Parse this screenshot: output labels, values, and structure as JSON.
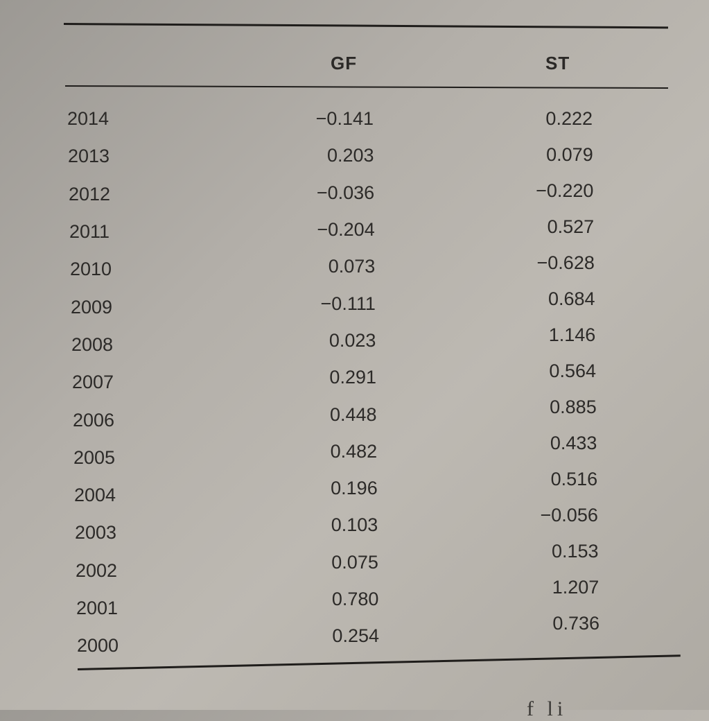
{
  "table": {
    "headers": {
      "row_label": "",
      "gf": "GF",
      "st": "ST"
    },
    "rows": [
      {
        "year": "2014",
        "gf": "−0.141",
        "st": "0.222"
      },
      {
        "year": "2013",
        "gf": "0.203",
        "st": "0.079"
      },
      {
        "year": "2012",
        "gf": "−0.036",
        "st": "−0.220"
      },
      {
        "year": "2011",
        "gf": "−0.204",
        "st": "0.527"
      },
      {
        "year": "2010",
        "gf": "0.073",
        "st": "−0.628"
      },
      {
        "year": "2009",
        "gf": "−0.111",
        "st": "0.684"
      },
      {
        "year": "2008",
        "gf": "0.023",
        "st": "1.146"
      },
      {
        "year": "2007",
        "gf": "0.291",
        "st": "0.564"
      },
      {
        "year": "2006",
        "gf": "0.448",
        "st": "0.885"
      },
      {
        "year": "2005",
        "gf": "0.482",
        "st": "0.433"
      },
      {
        "year": "2004",
        "gf": "0.196",
        "st": "0.516"
      },
      {
        "year": "2003",
        "gf": "0.103",
        "st": "−0.056"
      },
      {
        "year": "2002",
        "gf": "0.075",
        "st": "0.153"
      },
      {
        "year": "2001",
        "gf": "0.780",
        "st": "1.207"
      },
      {
        "year": "2000",
        "gf": "0.254",
        "st": "0.736"
      }
    ]
  },
  "footer_fragment": "f li"
}
